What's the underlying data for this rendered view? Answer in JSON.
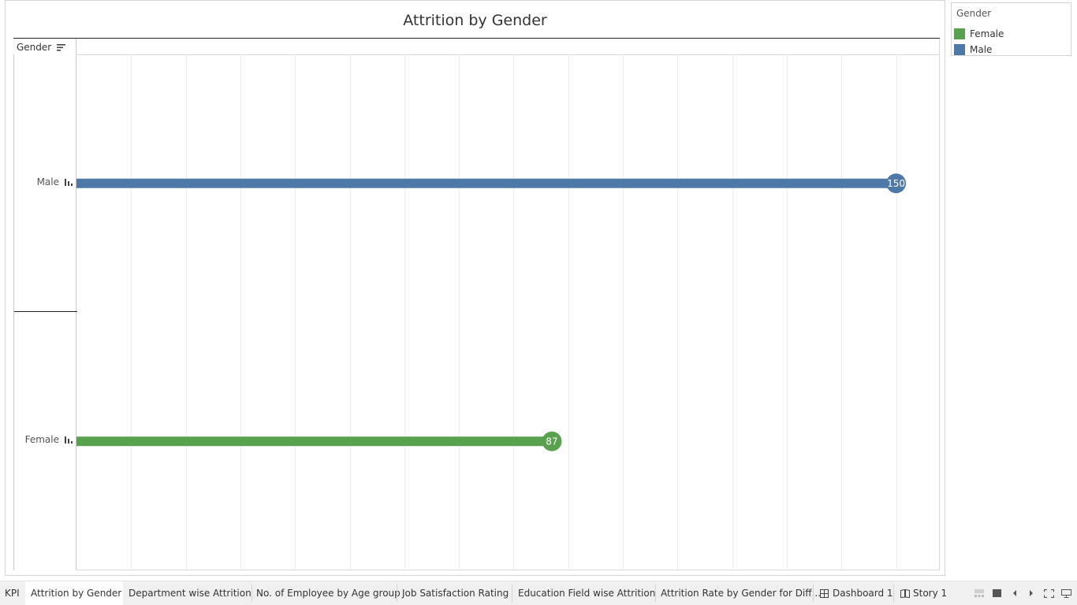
{
  "worksheet": {
    "title": "Attrition by Gender",
    "row_header": "Gender"
  },
  "chart_data": {
    "type": "bar",
    "style": "lollipop",
    "title": "Attrition by Gender",
    "row_field": "Gender",
    "categories": [
      "Male",
      "Female"
    ],
    "values": [
      150,
      87
    ],
    "colors": [
      "#4e79a7",
      "#59a14f"
    ],
    "data_labels": [
      "150",
      "87"
    ],
    "xlim": [
      0,
      158
    ],
    "grid": "vertical",
    "x_axis_labels_shown": false
  },
  "legend": {
    "title": "Gender",
    "items": [
      {
        "label": "Female",
        "color": "#59a14f"
      },
      {
        "label": "Male",
        "color": "#4e79a7"
      }
    ]
  },
  "tabs": [
    {
      "label": "KPI",
      "icon": "",
      "active": false
    },
    {
      "label": "Attrition by Gender",
      "icon": "",
      "active": true
    },
    {
      "label": "Department wise Attrition",
      "icon": "",
      "active": false
    },
    {
      "label": "No. of Employee by Age group",
      "icon": "",
      "active": false
    },
    {
      "label": "Job Satisfaction Rating",
      "icon": "",
      "active": false
    },
    {
      "label": "Education Field wise Attrition",
      "icon": "",
      "active": false
    },
    {
      "label": "Attrition Rate by Gender for Diff...",
      "icon": "",
      "active": false
    },
    {
      "label": "Dashboard 1",
      "icon": "dashboard-icon",
      "active": false
    },
    {
      "label": "Story 1",
      "icon": "story-icon",
      "active": false
    }
  ],
  "controls": [
    "show-filmstrip-icon",
    "show-tabs-icon",
    "previous-sheet-icon",
    "next-sheet-icon",
    "fullscreen-icon",
    "presentation-mode-icon"
  ]
}
